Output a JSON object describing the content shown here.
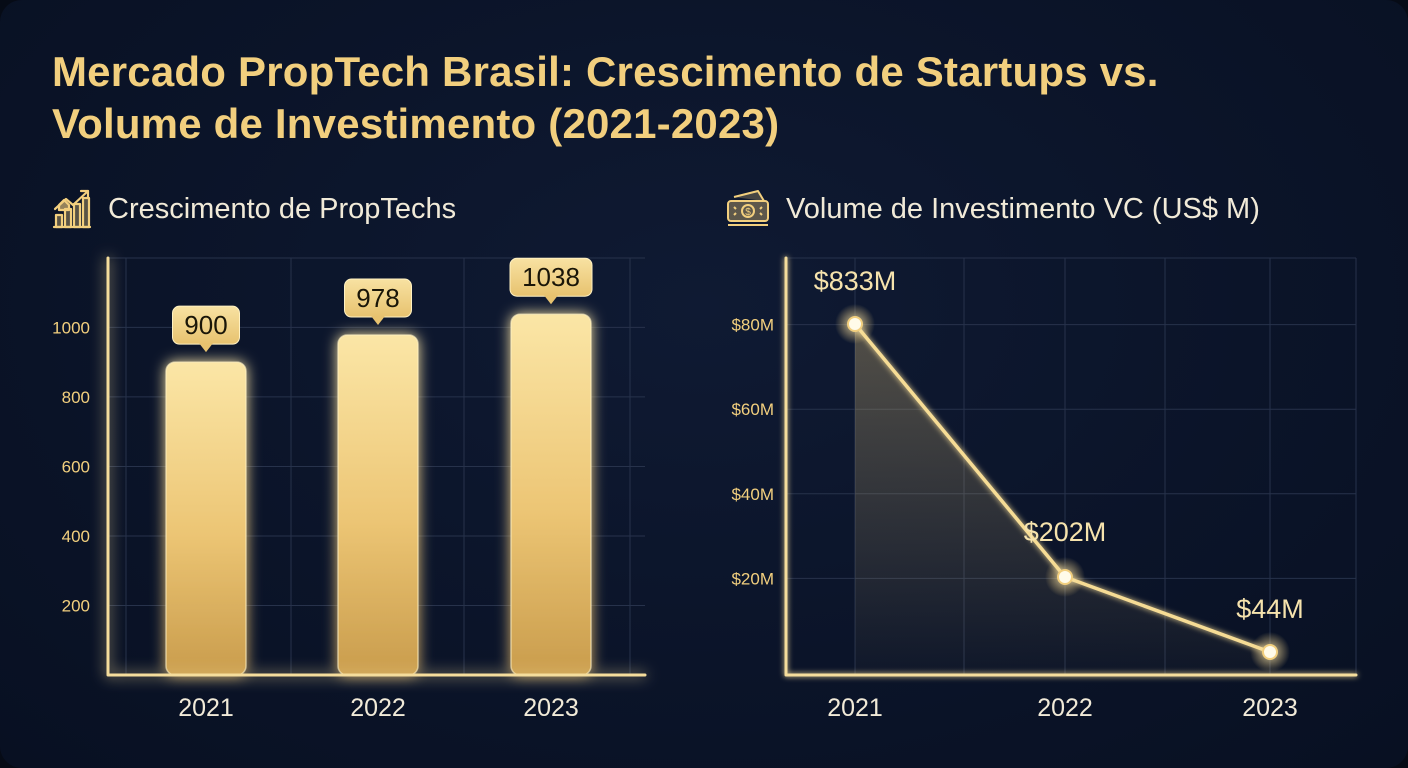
{
  "title_lines": [
    "Mercado PropTech Brasil: Crescimento de Startups vs.",
    "Volume de Investimento (2021-2023)"
  ],
  "colors": {
    "background": "#0b1429",
    "gold": "#f2cf7e",
    "bar_top": "#fbe6a6",
    "bar_bottom": "#c99c4c",
    "label_bg": "#f2d58d",
    "grid": "#27324b",
    "axis": "#f5dd9c",
    "text_light": "#f1ead8"
  },
  "icons": {
    "left": "growth-chart-house-icon",
    "right": "money-stack-icon"
  },
  "chart_data": [
    {
      "type": "bar",
      "title": "Crescimento de PropTechs",
      "categories": [
        "2021",
        "2022",
        "2023"
      ],
      "values": [
        900,
        978,
        1038
      ],
      "data_labels": [
        "900",
        "978",
        "1038"
      ],
      "y_ticks": [
        200,
        400,
        600,
        800,
        1000
      ],
      "y_tick_labels": [
        "200",
        "400",
        "600",
        "800",
        "1000"
      ],
      "ylim": [
        0,
        1200
      ],
      "grid": true
    },
    {
      "type": "area",
      "title": "Volume de Investimento VC (US$ M)",
      "categories": [
        "2021",
        "2022",
        "2023"
      ],
      "values": [
        833,
        202,
        44
      ],
      "data_labels": [
        "$833M",
        "$202M",
        "$44M"
      ],
      "y_ticks": [
        20,
        40,
        60,
        80
      ],
      "y_tick_labels": [
        "$20M",
        "$40M",
        "$60M",
        "$80M"
      ],
      "grid": true
    }
  ]
}
